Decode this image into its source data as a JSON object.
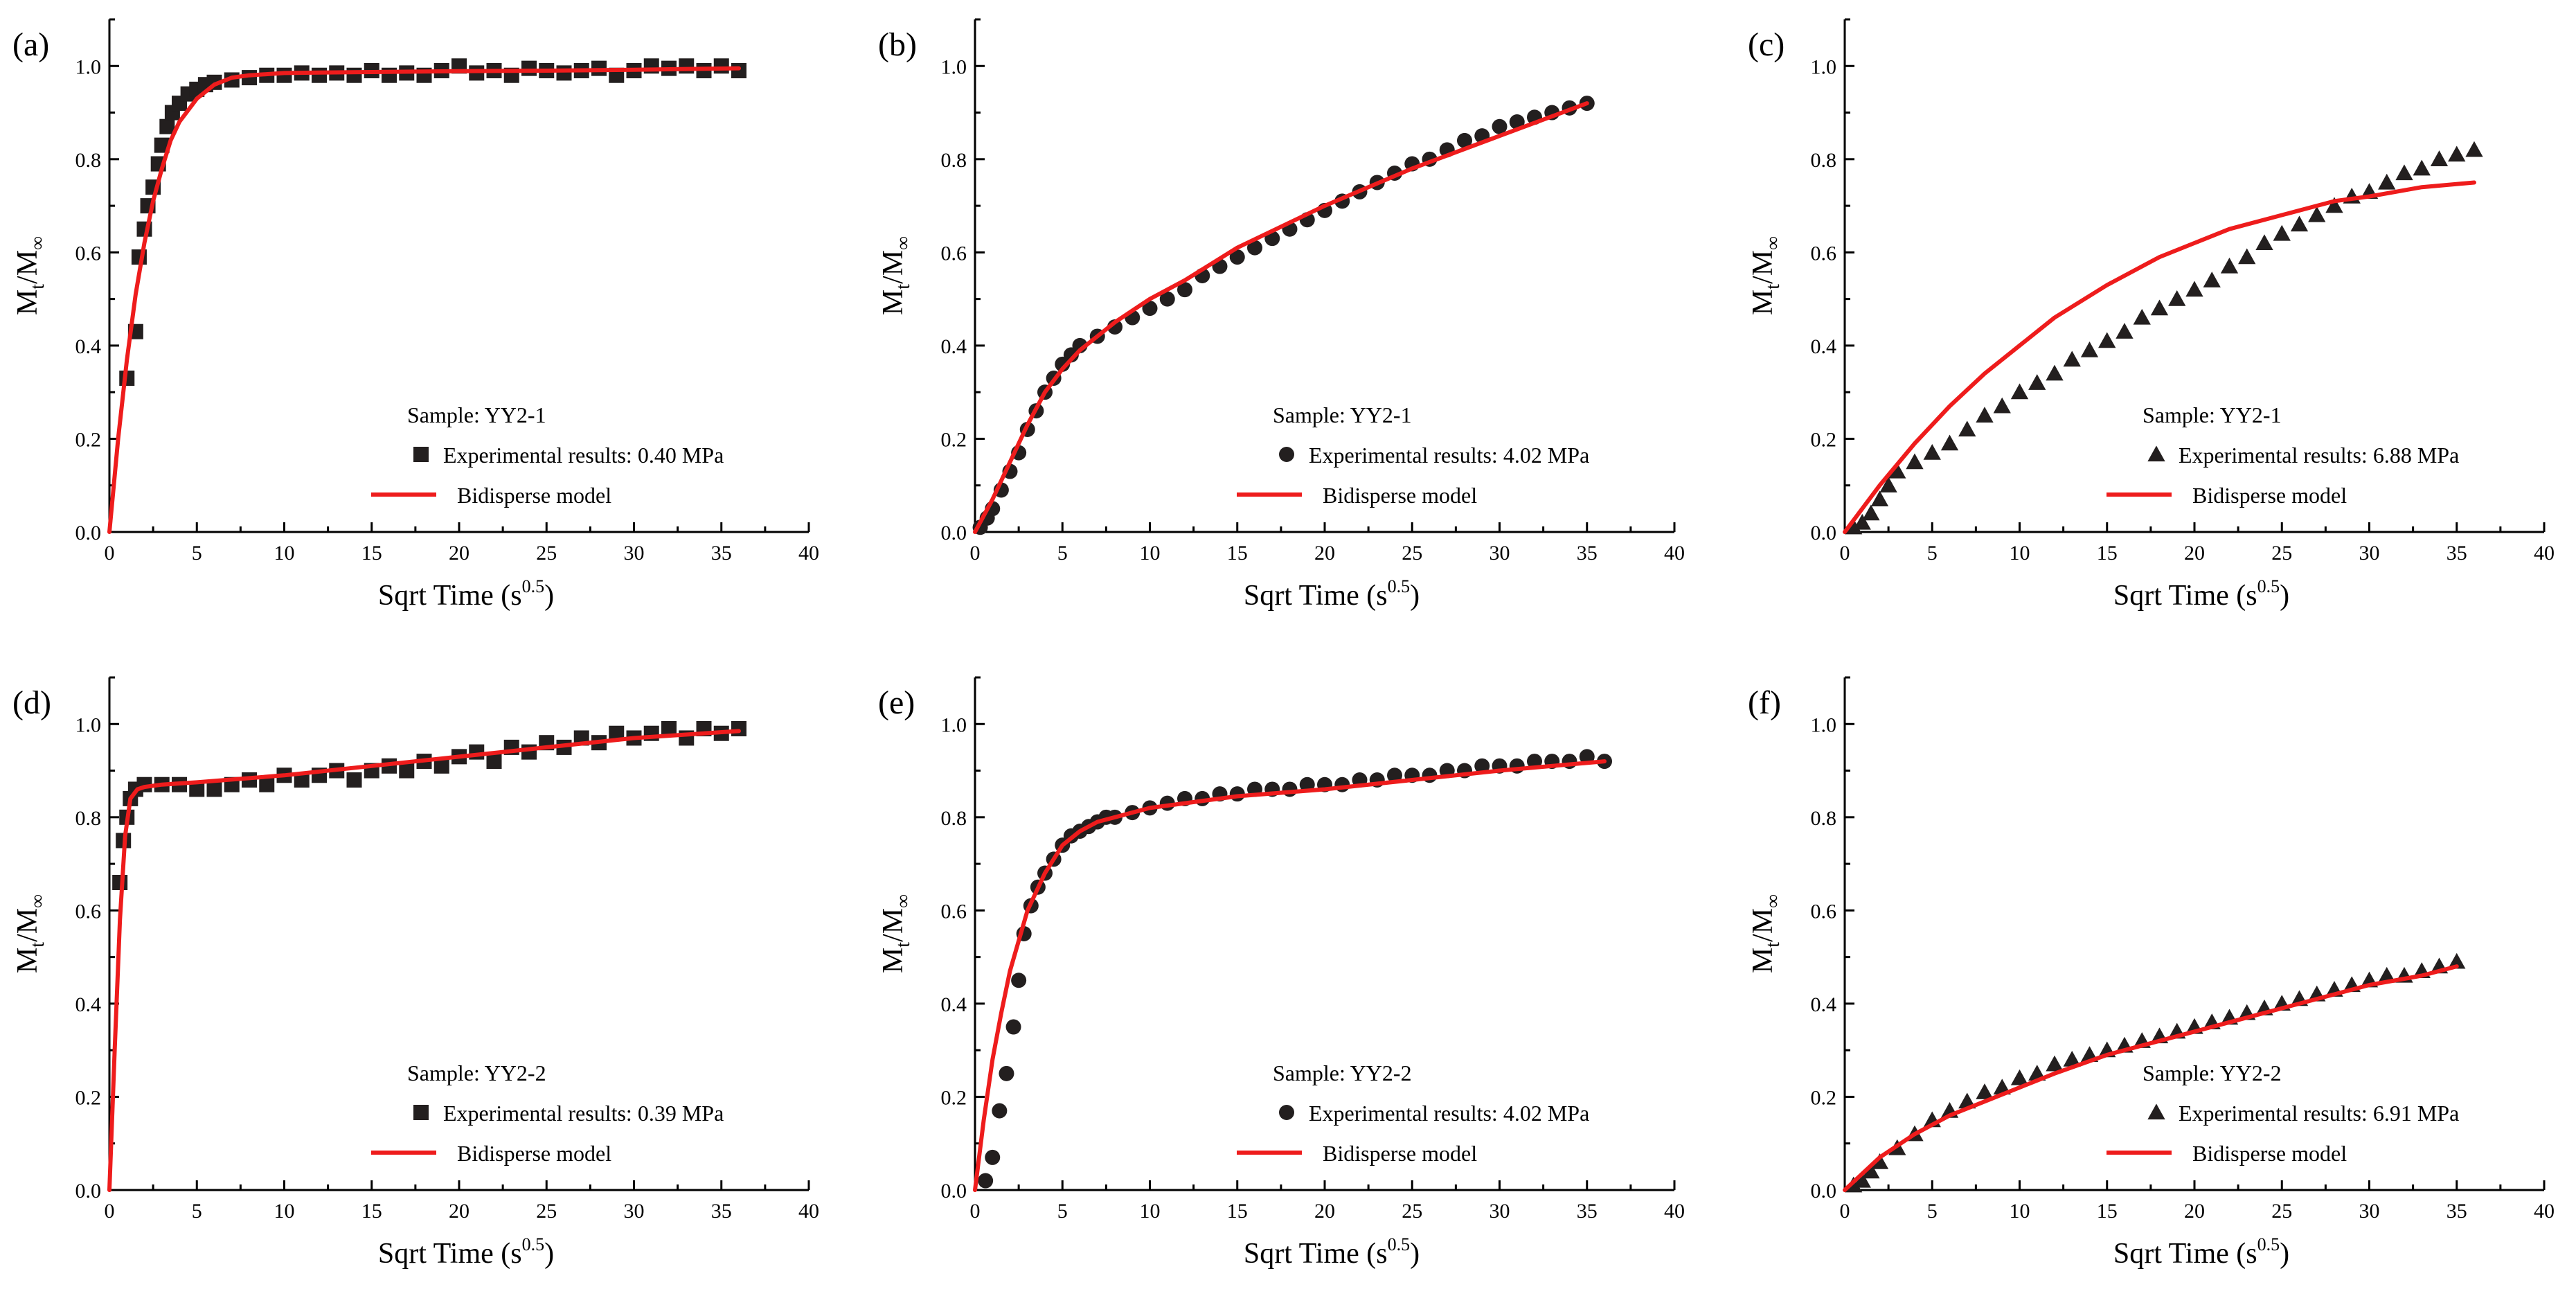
{
  "colors": {
    "model": "#ee1c1c",
    "marker": "#231f1f"
  },
  "chart_data": [
    {
      "type": "scatter",
      "label": "(a)",
      "xlabel": "Sqrt Time (s^0.5)",
      "ylabel": "Mt/M∞",
      "xlim": [
        0,
        40
      ],
      "ylim": [
        0,
        1.1
      ],
      "xticks": [
        "0",
        "5",
        "10",
        "15",
        "20",
        "25",
        "30",
        "35",
        "40"
      ],
      "yticks": [
        "0.0",
        "0.2",
        "0.4",
        "0.6",
        "0.8",
        "1.0"
      ],
      "legend": {
        "sample": "Sample: YY2-1",
        "experimental": "Experimental results: 0.40 MPa",
        "model": "Bidisperse model",
        "marker": "square"
      },
      "series": [
        {
          "name": "Experimental results",
          "marker": "square",
          "x": [
            1.0,
            1.5,
            1.7,
            2.0,
            2.2,
            2.5,
            2.8,
            3.0,
            3.3,
            3.6,
            4.0,
            4.5,
            5.0,
            5.5,
            6.0,
            7.0,
            8.0,
            9.0,
            10,
            11,
            12,
            13,
            14,
            15,
            16,
            17,
            18,
            19,
            20,
            21,
            22,
            23,
            24,
            25,
            26,
            27,
            28,
            29,
            30,
            31,
            32,
            33,
            34,
            35,
            36
          ],
          "y": [
            0.33,
            0.43,
            0.59,
            0.65,
            0.7,
            0.74,
            0.79,
            0.83,
            0.87,
            0.9,
            0.92,
            0.94,
            0.95,
            0.96,
            0.965,
            0.97,
            0.975,
            0.98,
            0.98,
            0.985,
            0.98,
            0.985,
            0.98,
            0.99,
            0.98,
            0.985,
            0.98,
            0.99,
            1.0,
            0.985,
            0.99,
            0.98,
            0.995,
            0.99,
            0.985,
            0.99,
            0.995,
            0.98,
            0.99,
            1.0,
            0.995,
            1.0,
            0.99,
            1.0,
            0.99
          ]
        },
        {
          "name": "Bidisperse model",
          "line": true,
          "x": [
            0,
            0.5,
            1,
            1.5,
            2,
            2.5,
            3,
            3.5,
            4,
            5,
            6,
            7,
            8,
            10,
            12,
            15,
            20,
            25,
            30,
            36
          ],
          "y": [
            0,
            0.2,
            0.37,
            0.51,
            0.62,
            0.71,
            0.78,
            0.84,
            0.88,
            0.93,
            0.96,
            0.975,
            0.98,
            0.985,
            0.986,
            0.987,
            0.989,
            0.99,
            0.992,
            0.995
          ]
        }
      ]
    },
    {
      "type": "scatter",
      "label": "(b)",
      "xlabel": "Sqrt Time (s^0.5)",
      "ylabel": "Mt/M∞",
      "xlim": [
        0,
        40
      ],
      "ylim": [
        0,
        1.1
      ],
      "xticks": [
        "0",
        "5",
        "10",
        "15",
        "20",
        "25",
        "30",
        "35",
        "40"
      ],
      "yticks": [
        "0.0",
        "0.2",
        "0.4",
        "0.6",
        "0.8",
        "1.0"
      ],
      "legend": {
        "sample": "Sample: YY2-1",
        "experimental": "Experimental results: 4.02 MPa",
        "model": "Bidisperse model",
        "marker": "circle"
      },
      "series": [
        {
          "name": "Experimental results",
          "marker": "circle",
          "x": [
            0.3,
            0.7,
            1.0,
            1.5,
            2.0,
            2.5,
            3.0,
            3.5,
            4.0,
            4.5,
            5.0,
            5.5,
            6,
            7,
            8,
            9,
            10,
            11,
            12,
            13,
            14,
            15,
            16,
            17,
            18,
            19,
            20,
            21,
            22,
            23,
            24,
            25,
            26,
            27,
            28,
            29,
            30,
            31,
            32,
            33,
            34,
            35
          ],
          "y": [
            0.01,
            0.03,
            0.05,
            0.09,
            0.13,
            0.17,
            0.22,
            0.26,
            0.3,
            0.33,
            0.36,
            0.38,
            0.4,
            0.42,
            0.44,
            0.46,
            0.48,
            0.5,
            0.52,
            0.55,
            0.57,
            0.59,
            0.61,
            0.63,
            0.65,
            0.67,
            0.69,
            0.71,
            0.73,
            0.75,
            0.77,
            0.79,
            0.8,
            0.82,
            0.84,
            0.85,
            0.87,
            0.88,
            0.89,
            0.9,
            0.91,
            0.92
          ]
        },
        {
          "name": "Bidisperse model",
          "line": true,
          "x": [
            0,
            1,
            2,
            3,
            4,
            5,
            6,
            8,
            10,
            12,
            15,
            20,
            25,
            30,
            35
          ],
          "y": [
            0,
            0.07,
            0.15,
            0.23,
            0.3,
            0.35,
            0.39,
            0.45,
            0.5,
            0.54,
            0.61,
            0.7,
            0.78,
            0.85,
            0.92
          ]
        }
      ]
    },
    {
      "type": "scatter",
      "label": "(c)",
      "xlabel": "Sqrt Time (s^0.5)",
      "ylabel": "Mt/M∞",
      "xlim": [
        0,
        40
      ],
      "ylim": [
        0,
        1.1
      ],
      "xticks": [
        "0",
        "5",
        "10",
        "15",
        "20",
        "25",
        "30",
        "35",
        "40"
      ],
      "yticks": [
        "0.0",
        "0.2",
        "0.4",
        "0.6",
        "0.8",
        "1.0"
      ],
      "legend": {
        "sample": "Sample: YY2-1",
        "experimental": "Experimental results: 6.88 MPa",
        "model": "Bidisperse model",
        "marker": "triangle"
      },
      "series": [
        {
          "name": "Experimental results",
          "marker": "triangle",
          "x": [
            0.5,
            1,
            1.5,
            2,
            2.5,
            3,
            4,
            5,
            6,
            7,
            8,
            9,
            10,
            11,
            12,
            13,
            14,
            15,
            16,
            17,
            18,
            19,
            20,
            21,
            22,
            23,
            24,
            25,
            26,
            27,
            28,
            29,
            30,
            31,
            32,
            33,
            34,
            35,
            36
          ],
          "y": [
            0.01,
            0.02,
            0.04,
            0.07,
            0.1,
            0.13,
            0.15,
            0.17,
            0.19,
            0.22,
            0.25,
            0.27,
            0.3,
            0.32,
            0.34,
            0.37,
            0.39,
            0.41,
            0.43,
            0.46,
            0.48,
            0.5,
            0.52,
            0.54,
            0.57,
            0.59,
            0.62,
            0.64,
            0.66,
            0.68,
            0.7,
            0.72,
            0.73,
            0.75,
            0.77,
            0.78,
            0.8,
            0.81,
            0.82
          ]
        },
        {
          "name": "Bidisperse model",
          "line": true,
          "x": [
            0,
            2,
            4,
            6,
            8,
            10,
            12,
            15,
            18,
            20,
            22,
            25,
            28,
            30,
            33,
            36
          ],
          "y": [
            0,
            0.1,
            0.19,
            0.27,
            0.34,
            0.4,
            0.46,
            0.53,
            0.59,
            0.62,
            0.65,
            0.68,
            0.71,
            0.72,
            0.74,
            0.75
          ]
        }
      ]
    },
    {
      "type": "scatter",
      "label": "(d)",
      "xlabel": "Sqrt Time (s^0.5)",
      "ylabel": "Mt/M∞",
      "xlim": [
        0,
        40
      ],
      "ylim": [
        0,
        1.1
      ],
      "xticks": [
        "0",
        "5",
        "10",
        "15",
        "20",
        "25",
        "30",
        "35",
        "40"
      ],
      "yticks": [
        "0.0",
        "0.2",
        "0.4",
        "0.6",
        "0.8",
        "1.0"
      ],
      "legend": {
        "sample": "Sample: YY2-2",
        "experimental": "Experimental results: 0.39 MPa",
        "model": "Bidisperse model",
        "marker": "square"
      },
      "series": [
        {
          "name": "Experimental results",
          "marker": "square",
          "x": [
            0.6,
            0.8,
            1.0,
            1.2,
            1.5,
            2,
            3,
            4,
            5,
            6,
            7,
            8,
            9,
            10,
            11,
            12,
            13,
            14,
            15,
            16,
            17,
            18,
            19,
            20,
            21,
            22,
            23,
            24,
            25,
            26,
            27,
            28,
            29,
            30,
            31,
            32,
            33,
            34,
            35,
            36
          ],
          "y": [
            0.66,
            0.75,
            0.8,
            0.84,
            0.86,
            0.87,
            0.87,
            0.87,
            0.86,
            0.86,
            0.87,
            0.88,
            0.87,
            0.89,
            0.88,
            0.89,
            0.9,
            0.88,
            0.9,
            0.91,
            0.9,
            0.92,
            0.91,
            0.93,
            0.94,
            0.92,
            0.95,
            0.94,
            0.96,
            0.95,
            0.97,
            0.96,
            0.98,
            0.97,
            0.98,
            0.99,
            0.97,
            0.99,
            0.98,
            0.99
          ]
        },
        {
          "name": "Bidisperse model",
          "line": true,
          "x": [
            0,
            0.3,
            0.6,
            0.9,
            1.2,
            1.6,
            2,
            3,
            5,
            10,
            15,
            20,
            25,
            30,
            36
          ],
          "y": [
            0,
            0.3,
            0.58,
            0.76,
            0.84,
            0.86,
            0.865,
            0.87,
            0.875,
            0.89,
            0.91,
            0.93,
            0.95,
            0.97,
            0.985
          ]
        }
      ]
    },
    {
      "type": "scatter",
      "label": "(e)",
      "xlabel": "Sqrt Time (s^0.5)",
      "ylabel": "Mt/M∞",
      "xlim": [
        0,
        40
      ],
      "ylim": [
        0,
        1.1
      ],
      "xticks": [
        "0",
        "5",
        "10",
        "15",
        "20",
        "25",
        "30",
        "35",
        "40"
      ],
      "yticks": [
        "0.0",
        "0.2",
        "0.4",
        "0.6",
        "0.8",
        "1.0"
      ],
      "legend": {
        "sample": "Sample: YY2-2",
        "experimental": "Experimental results: 4.02 MPa",
        "model": "Bidisperse model",
        "marker": "circle"
      },
      "series": [
        {
          "name": "Experimental results",
          "marker": "circle",
          "x": [
            0.6,
            1.0,
            1.4,
            1.8,
            2.2,
            2.5,
            2.8,
            3.2,
            3.6,
            4.0,
            4.5,
            5,
            5.5,
            6,
            6.5,
            7,
            7.5,
            8,
            9,
            10,
            11,
            12,
            13,
            14,
            15,
            16,
            17,
            18,
            19,
            20,
            21,
            22,
            23,
            24,
            25,
            26,
            27,
            28,
            29,
            30,
            31,
            32,
            33,
            34,
            35,
            36
          ],
          "y": [
            0.02,
            0.07,
            0.17,
            0.25,
            0.35,
            0.45,
            0.55,
            0.61,
            0.65,
            0.68,
            0.71,
            0.74,
            0.76,
            0.77,
            0.78,
            0.79,
            0.8,
            0.8,
            0.81,
            0.82,
            0.83,
            0.84,
            0.84,
            0.85,
            0.85,
            0.86,
            0.86,
            0.86,
            0.87,
            0.87,
            0.87,
            0.88,
            0.88,
            0.89,
            0.89,
            0.89,
            0.9,
            0.9,
            0.91,
            0.91,
            0.91,
            0.92,
            0.92,
            0.92,
            0.93,
            0.92
          ]
        },
        {
          "name": "Bidisperse model",
          "line": true,
          "x": [
            0,
            0.5,
            1,
            1.5,
            2,
            3,
            4,
            5,
            6,
            7,
            8,
            10,
            12,
            15,
            20,
            25,
            30,
            36
          ],
          "y": [
            0,
            0.15,
            0.28,
            0.38,
            0.47,
            0.6,
            0.68,
            0.74,
            0.77,
            0.79,
            0.8,
            0.82,
            0.83,
            0.845,
            0.86,
            0.88,
            0.9,
            0.92
          ]
        }
      ]
    },
    {
      "type": "scatter",
      "label": "(f)",
      "xlabel": "Sqrt Time (s^0.5)",
      "ylabel": "Mt/M∞",
      "xlim": [
        0,
        40
      ],
      "ylim": [
        0,
        1.1
      ],
      "xticks": [
        "0",
        "5",
        "10",
        "15",
        "20",
        "25",
        "30",
        "35",
        "40"
      ],
      "yticks": [
        "0.0",
        "0.2",
        "0.4",
        "0.6",
        "0.8",
        "1.0"
      ],
      "legend": {
        "sample": "Sample: YY2-2",
        "experimental": "Experimental results: 6.91 MPa",
        "model": "Bidisperse model",
        "marker": "triangle"
      },
      "series": [
        {
          "name": "Experimental results",
          "marker": "triangle",
          "x": [
            0.5,
            1,
            1.5,
            2,
            3,
            4,
            5,
            6,
            7,
            8,
            9,
            10,
            11,
            12,
            13,
            14,
            15,
            16,
            17,
            18,
            19,
            20,
            21,
            22,
            23,
            24,
            25,
            26,
            27,
            28,
            29,
            30,
            31,
            32,
            33,
            34,
            35
          ],
          "y": [
            0.01,
            0.02,
            0.04,
            0.06,
            0.09,
            0.12,
            0.15,
            0.17,
            0.19,
            0.21,
            0.22,
            0.24,
            0.25,
            0.27,
            0.28,
            0.29,
            0.3,
            0.31,
            0.32,
            0.33,
            0.34,
            0.35,
            0.36,
            0.37,
            0.38,
            0.39,
            0.4,
            0.41,
            0.42,
            0.43,
            0.44,
            0.45,
            0.46,
            0.46,
            0.47,
            0.48,
            0.49
          ]
        },
        {
          "name": "Bidisperse model",
          "line": true,
          "x": [
            0,
            2,
            4,
            6,
            8,
            10,
            12,
            15,
            18,
            20,
            22,
            25,
            28,
            30,
            33,
            35
          ],
          "y": [
            0,
            0.07,
            0.12,
            0.16,
            0.19,
            0.22,
            0.25,
            0.29,
            0.32,
            0.34,
            0.36,
            0.39,
            0.42,
            0.44,
            0.46,
            0.48
          ]
        }
      ]
    }
  ]
}
